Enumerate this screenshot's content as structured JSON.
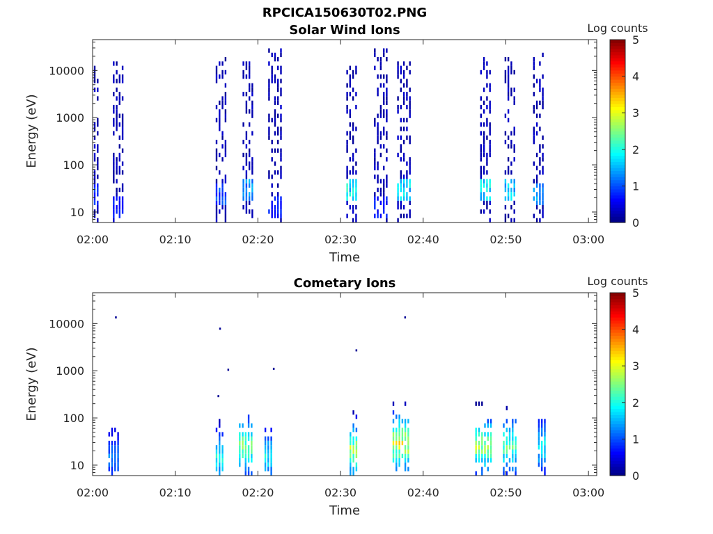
{
  "figure": {
    "title": "RPCICA150630T02.PNG"
  },
  "chart_data": [
    {
      "type": "heatmap",
      "title": "Solar Wind Ions",
      "xlabel": "Time",
      "ylabel": "Energy (eV)",
      "x_ticks": [
        "02:00",
        "02:10",
        "02:20",
        "02:30",
        "02:40",
        "02:50",
        "03:00"
      ],
      "x_range_minutes": [
        0,
        61
      ],
      "y_scale": "log",
      "y_ticks": [
        10,
        100,
        1000,
        10000
      ],
      "y_tick_labels": [
        "10",
        "100",
        "1000",
        "10000"
      ],
      "y_range": [
        6,
        45000
      ],
      "colorbar": {
        "label": "Log counts",
        "range": [
          0,
          5
        ],
        "ticks": [
          "0",
          "1",
          "2",
          "3",
          "4",
          "5"
        ],
        "colormap": "jet"
      },
      "bursts": [
        {
          "t": 0.4,
          "w": 0.5,
          "emax": 12000,
          "peak_e": 25,
          "peak": 1.0
        },
        {
          "t": 3.0,
          "w": 1.1,
          "emax": 16000,
          "peak_e": 12,
          "peak": 0.9
        },
        {
          "t": 15.5,
          "w": 1.2,
          "emax": 20000,
          "peak_e": 25,
          "peak": 1.2
        },
        {
          "t": 18.8,
          "w": 1.3,
          "emax": 15000,
          "peak_e": 28,
          "peak": 1.6
        },
        {
          "t": 22.0,
          "w": 1.5,
          "emax": 30000,
          "peak_e": 12,
          "peak": 0.9
        },
        {
          "t": 31.3,
          "w": 1.2,
          "emax": 16000,
          "peak_e": 28,
          "peak": 2.2
        },
        {
          "t": 34.8,
          "w": 1.5,
          "emax": 30000,
          "peak_e": 12,
          "peak": 0.9
        },
        {
          "t": 37.6,
          "w": 1.5,
          "emax": 16000,
          "peak_e": 28,
          "peak": 2.1
        },
        {
          "t": 47.6,
          "w": 1.4,
          "emax": 18000,
          "peak_e": 30,
          "peak": 2.2
        },
        {
          "t": 50.5,
          "w": 1.3,
          "emax": 18000,
          "peak_e": 28,
          "peak": 2.0
        },
        {
          "t": 54.0,
          "w": 1.4,
          "emax": 25000,
          "peak_e": 25,
          "peak": 1.6
        }
      ]
    },
    {
      "type": "heatmap",
      "title": "Cometary Ions",
      "xlabel": "Time",
      "ylabel": "Energy (eV)",
      "x_ticks": [
        "02:00",
        "02:10",
        "02:20",
        "02:30",
        "02:40",
        "02:50",
        "03:00"
      ],
      "x_range_minutes": [
        0,
        61
      ],
      "y_scale": "log",
      "y_ticks": [
        10,
        100,
        1000,
        10000
      ],
      "y_tick_labels": [
        "10",
        "100",
        "1000",
        "10000"
      ],
      "y_range": [
        6,
        45000
      ],
      "colorbar": {
        "label": "Log counts",
        "range": [
          0,
          5
        ],
        "ticks": [
          "0",
          "1",
          "2",
          "3",
          "4",
          "5"
        ],
        "colormap": "jet"
      },
      "bursts": [
        {
          "t": 2.5,
          "w": 1.2,
          "emax": 120,
          "peak_e": 15,
          "peak": 1.5
        },
        {
          "t": 15.3,
          "w": 0.8,
          "emax": 90,
          "peak_e": 14,
          "peak": 2.3
        },
        {
          "t": 18.5,
          "w": 1.6,
          "emax": 110,
          "peak_e": 25,
          "peak": 3.0
        },
        {
          "t": 21.3,
          "w": 1.0,
          "emax": 60,
          "peak_e": 15,
          "peak": 2.2
        },
        {
          "t": 31.5,
          "w": 0.8,
          "emax": 150,
          "peak_e": 20,
          "peak": 3.3
        },
        {
          "t": 37.3,
          "w": 2.0,
          "emax": 300,
          "peak_e": 30,
          "peak": 3.6
        },
        {
          "t": 47.2,
          "w": 1.8,
          "emax": 200,
          "peak_e": 25,
          "peak": 3.2
        },
        {
          "t": 50.4,
          "w": 1.5,
          "emax": 180,
          "peak_e": 25,
          "peak": 2.8
        },
        {
          "t": 54.4,
          "w": 1.0,
          "emax": 120,
          "peak_e": 25,
          "peak": 2.2
        }
      ],
      "outliers": [
        {
          "t": 2.8,
          "e": 13500
        },
        {
          "t": 15.4,
          "e": 7800
        },
        {
          "t": 16.4,
          "e": 1050
        },
        {
          "t": 21.9,
          "e": 1100
        },
        {
          "t": 31.9,
          "e": 2700
        },
        {
          "t": 37.8,
          "e": 13500
        },
        {
          "t": 15.2,
          "e": 290
        }
      ]
    }
  ]
}
